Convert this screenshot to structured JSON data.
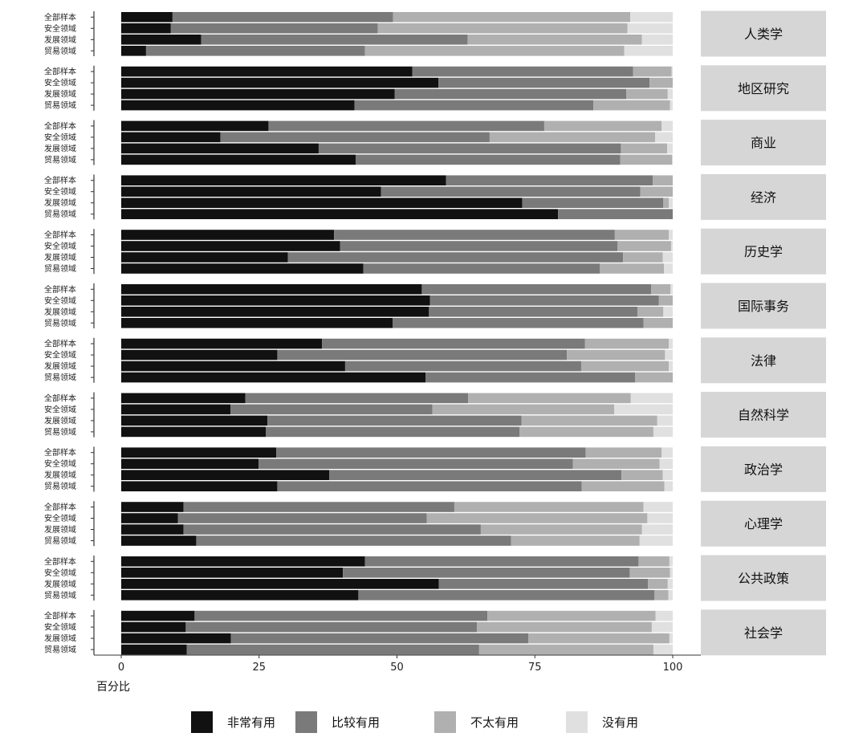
{
  "chart_data": {
    "type": "bar",
    "orientation": "horizontal",
    "stacked": true,
    "xlabel": "百分比",
    "xlim": [
      0,
      100
    ],
    "x_ticks": [
      0,
      25,
      50,
      75,
      100
    ],
    "row_labels": [
      "全部样本",
      "安全领域",
      "发展领域",
      "贸易领域"
    ],
    "series_names": [
      "非常有用",
      "比较有用",
      "不太有用",
      "没有用"
    ],
    "colors": [
      "#111111",
      "#7a7a7a",
      "#b0b0b0",
      "#e0e0e0"
    ],
    "legend_position": "bottom",
    "facets": [
      {
        "name": "人类学",
        "rows": [
          [
            9.3,
            40.0,
            43.0,
            7.7
          ],
          [
            9.0,
            37.5,
            45.3,
            8.2
          ],
          [
            14.5,
            48.3,
            31.6,
            5.6
          ],
          [
            4.5,
            39.7,
            47.0,
            8.8
          ]
        ]
      },
      {
        "name": "地区研究",
        "rows": [
          [
            52.8,
            40.0,
            7.0,
            0.2
          ],
          [
            57.5,
            38.3,
            4.2,
            0.0
          ],
          [
            49.6,
            42.0,
            7.5,
            0.9
          ],
          [
            42.3,
            43.3,
            13.9,
            0.5
          ]
        ]
      },
      {
        "name": "商业",
        "rows": [
          [
            26.7,
            50.0,
            21.3,
            2.0
          ],
          [
            18.0,
            48.8,
            30.0,
            3.2
          ],
          [
            35.8,
            54.8,
            8.4,
            1.0
          ],
          [
            42.5,
            48.0,
            9.4,
            0.1
          ]
        ]
      },
      {
        "name": "经济",
        "rows": [
          [
            58.9,
            37.5,
            3.6,
            0.0
          ],
          [
            47.1,
            47.0,
            5.9,
            0.0
          ],
          [
            72.7,
            25.6,
            1.0,
            0.7
          ],
          [
            79.2,
            20.8,
            0.0,
            0.0
          ]
        ]
      },
      {
        "name": "历史学",
        "rows": [
          [
            38.6,
            50.9,
            9.8,
            0.7
          ],
          [
            39.7,
            50.3,
            9.7,
            0.3
          ],
          [
            30.2,
            60.8,
            7.2,
            1.8
          ],
          [
            43.9,
            42.9,
            11.6,
            1.6
          ]
        ]
      },
      {
        "name": "国际事务",
        "rows": [
          [
            54.5,
            41.6,
            3.5,
            0.4
          ],
          [
            56.0,
            41.5,
            2.5,
            0.0
          ],
          [
            55.8,
            37.8,
            4.7,
            1.7
          ],
          [
            49.2,
            45.5,
            5.3,
            0.0
          ]
        ]
      },
      {
        "name": "法律",
        "rows": [
          [
            36.4,
            47.7,
            15.2,
            0.7
          ],
          [
            28.3,
            52.5,
            17.8,
            1.4
          ],
          [
            40.6,
            42.8,
            15.9,
            0.7
          ],
          [
            55.2,
            38.0,
            6.8,
            0.0
          ]
        ]
      },
      {
        "name": "自然科学",
        "rows": [
          [
            22.5,
            40.4,
            29.5,
            7.6
          ],
          [
            19.8,
            36.6,
            33.0,
            10.6
          ],
          [
            26.5,
            46.1,
            24.6,
            2.8
          ],
          [
            26.2,
            46.0,
            24.3,
            3.5
          ]
        ]
      },
      {
        "name": "政治学",
        "rows": [
          [
            28.1,
            56.1,
            13.8,
            2.0
          ],
          [
            24.9,
            57.0,
            15.7,
            2.4
          ],
          [
            37.7,
            53.0,
            7.5,
            1.8
          ],
          [
            28.3,
            55.2,
            15.0,
            1.5
          ]
        ]
      },
      {
        "name": "心理学",
        "rows": [
          [
            11.3,
            49.1,
            34.3,
            5.3
          ],
          [
            10.3,
            45.1,
            40.0,
            4.6
          ],
          [
            11.3,
            53.9,
            29.2,
            5.6
          ],
          [
            13.6,
            57.1,
            23.3,
            6.0
          ]
        ]
      },
      {
        "name": "公共政策",
        "rows": [
          [
            44.2,
            49.6,
            5.6,
            0.6
          ],
          [
            40.2,
            52.0,
            7.3,
            0.5
          ],
          [
            57.6,
            37.9,
            3.6,
            0.9
          ],
          [
            43.0,
            53.7,
            2.5,
            0.8
          ]
        ]
      },
      {
        "name": "社会学",
        "rows": [
          [
            13.3,
            53.1,
            30.5,
            3.1
          ],
          [
            11.7,
            52.8,
            31.7,
            3.8
          ],
          [
            19.9,
            53.9,
            25.6,
            0.6
          ],
          [
            11.9,
            53.0,
            31.6,
            3.5
          ]
        ]
      }
    ]
  }
}
